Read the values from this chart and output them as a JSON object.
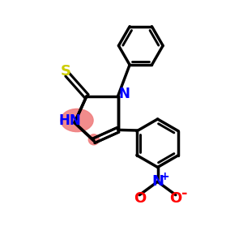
{
  "bg_color": "#ffffff",
  "bond_color": "#000000",
  "bond_width": 2.5,
  "S_color": "#cccc00",
  "N_color": "#0000ff",
  "HN_color": "#0000ff",
  "O_color": "#ff0000",
  "Np_color": "#0000ff",
  "highlight_color": "#f08080",
  "highlight_alpha": 0.9,
  "xlim": [
    0,
    10
  ],
  "ylim": [
    0,
    10
  ]
}
